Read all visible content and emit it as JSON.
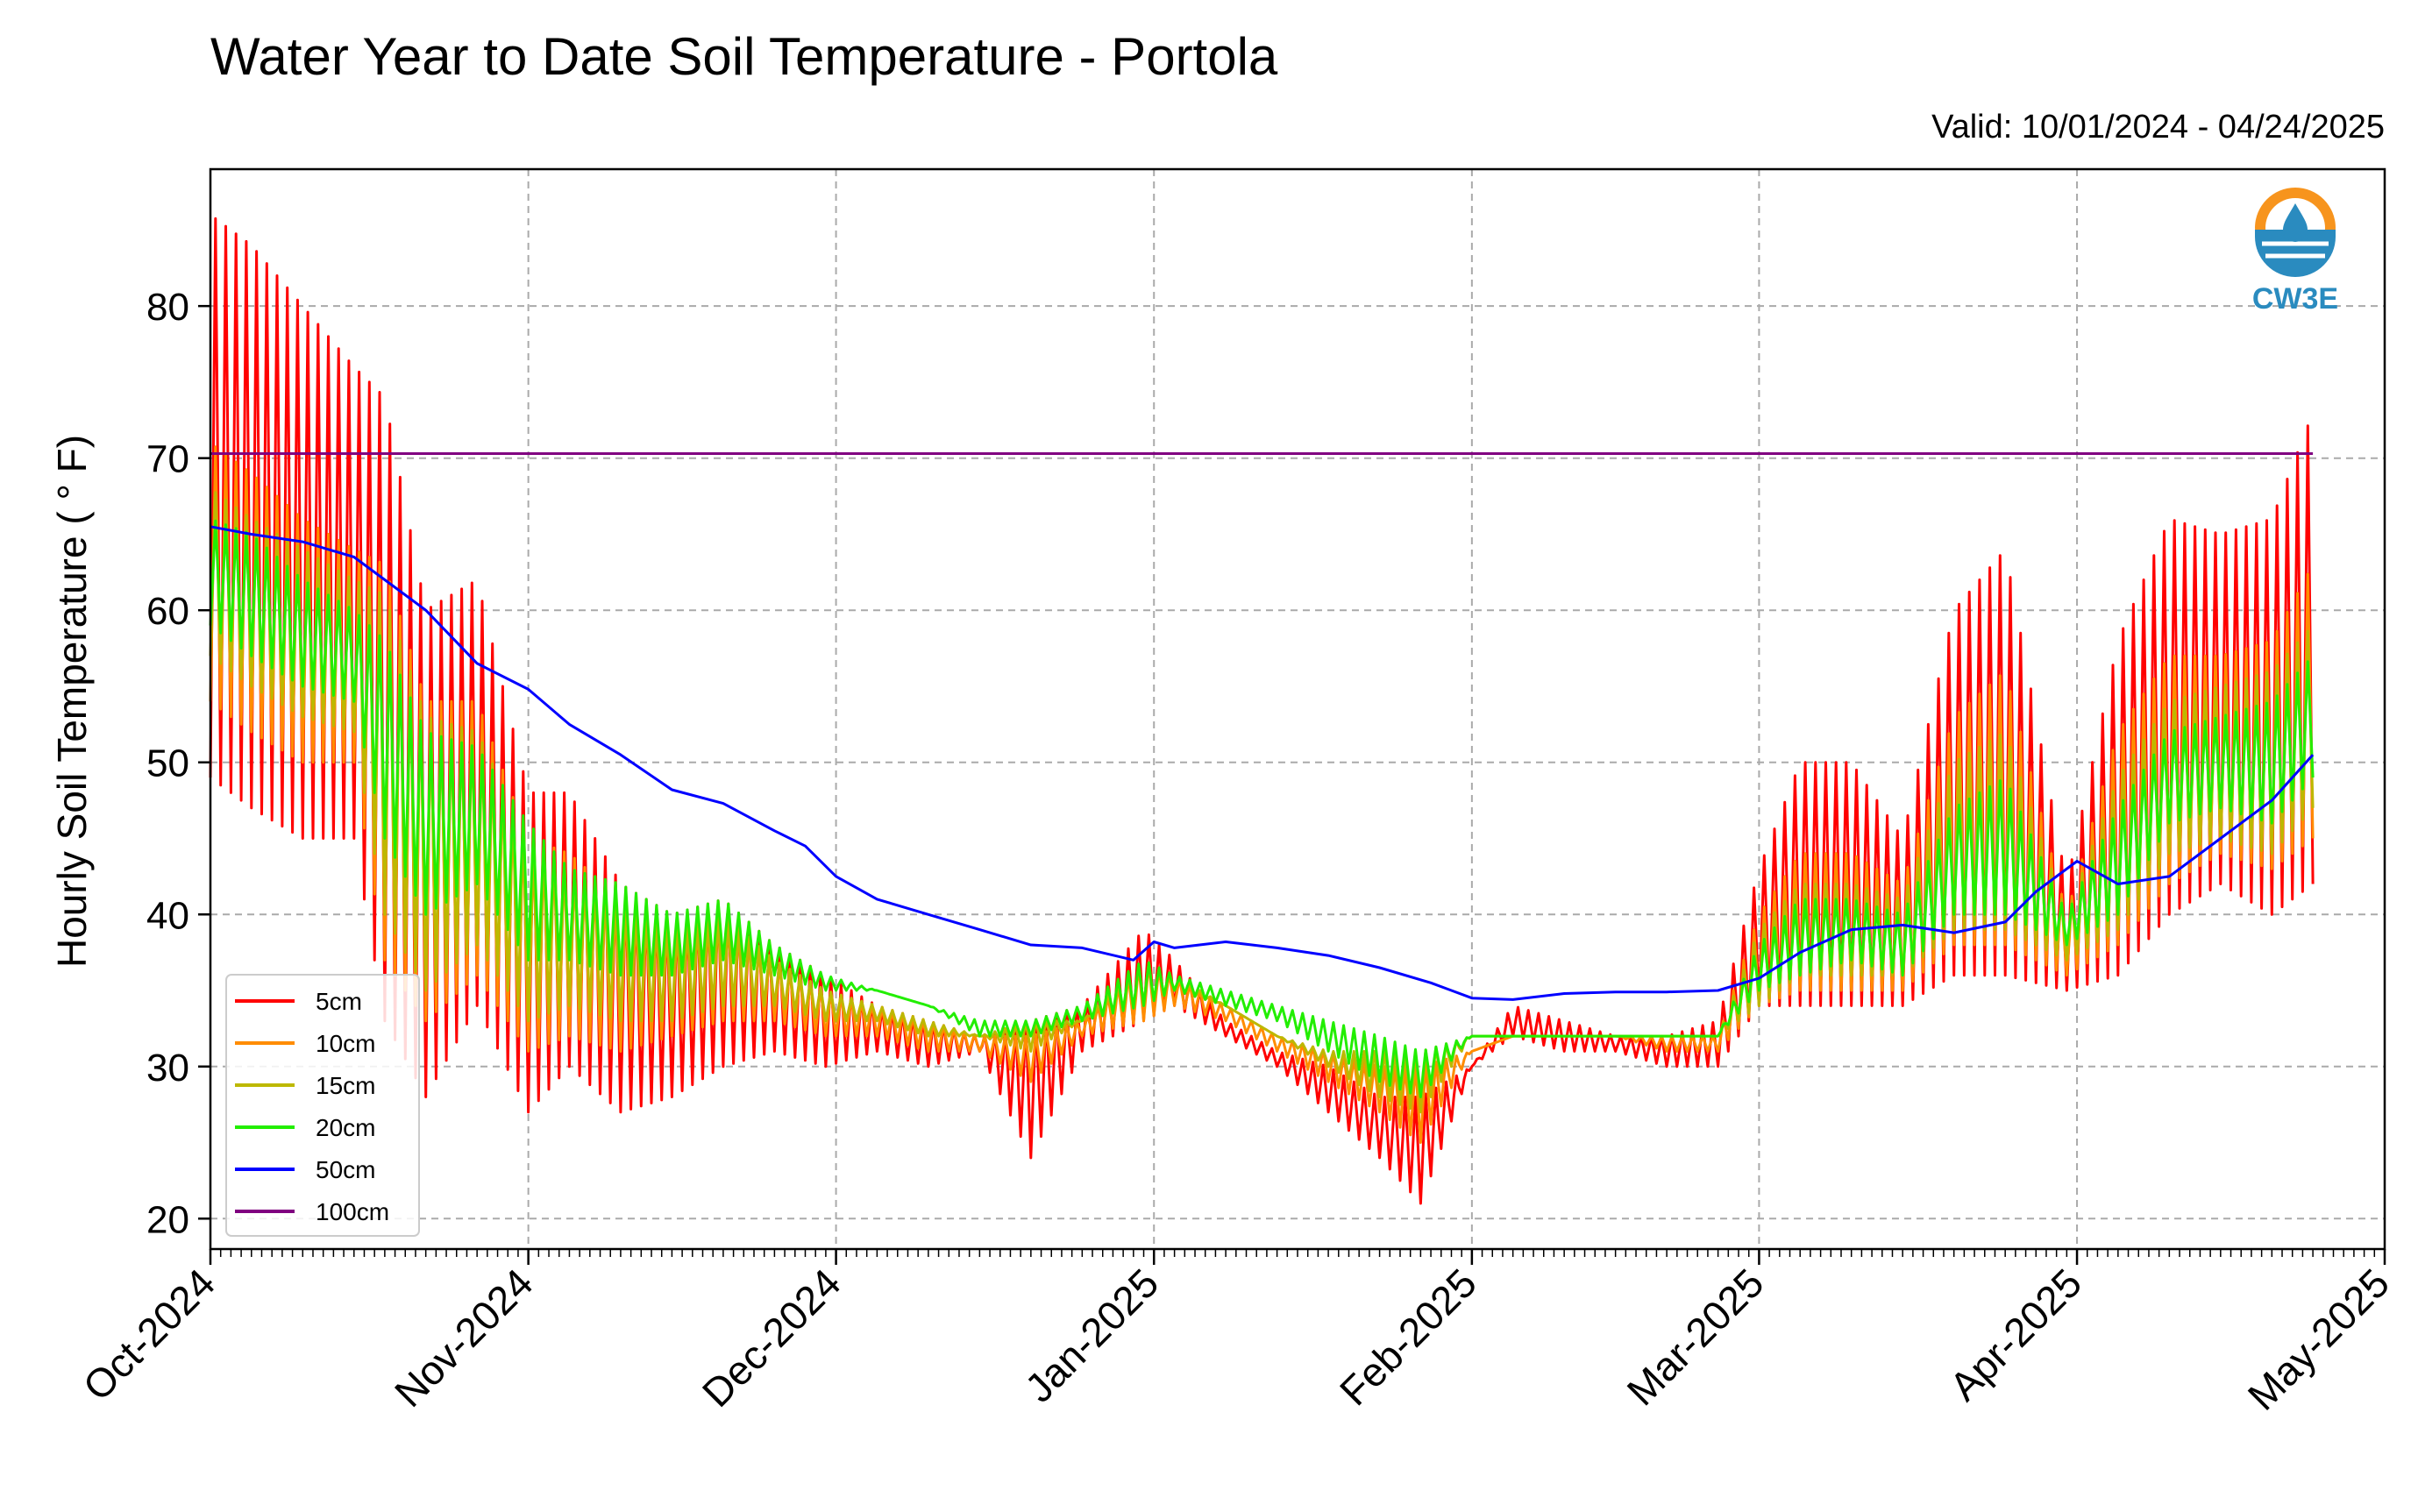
{
  "title": "Water Year to Date Soil Temperature - Portola",
  "valid_label": "Valid: 10/01/2024 - 04/24/2025",
  "logo": {
    "icon": "cw3e-water-drop-logo",
    "text": "CW3E",
    "colors": [
      "#f7941d",
      "#2a8bbf",
      "#1e6f9f"
    ]
  },
  "chart_data": {
    "type": "line",
    "title": "Water Year to Date Soil Temperature - Portola",
    "xlabel": "",
    "ylabel": "Hourly Soil Temperature ( ° F)",
    "x_range": [
      "2024-10-01",
      "2025-05-01"
    ],
    "ylim": [
      18,
      89
    ],
    "yticks": [
      20,
      30,
      40,
      50,
      60,
      70,
      80
    ],
    "xticks": [
      {
        "date": "2024-10-01",
        "label": "Oct-2024"
      },
      {
        "date": "2024-11-01",
        "label": "Nov-2024"
      },
      {
        "date": "2024-12-01",
        "label": "Dec-2024"
      },
      {
        "date": "2025-01-01",
        "label": "Jan-2025"
      },
      {
        "date": "2025-02-01",
        "label": "Feb-2025"
      },
      {
        "date": "2025-03-01",
        "label": "Mar-2025"
      },
      {
        "date": "2025-04-01",
        "label": "Apr-2025"
      },
      {
        "date": "2025-05-01",
        "label": "May-2025"
      }
    ],
    "grid": true,
    "legend_position": "lower-left",
    "series": [
      {
        "name": "5cm",
        "color": "#ff0000",
        "dates": [
          "2024-10-01",
          "2024-10-05",
          "2024-10-10",
          "2024-10-15",
          "2024-10-18",
          "2024-10-22",
          "2024-10-27",
          "2024-11-01",
          "2024-11-05",
          "2024-11-10",
          "2024-11-15",
          "2024-11-20",
          "2024-11-25",
          "2024-11-30",
          "2024-12-05",
          "2024-12-10",
          "2024-12-15",
          "2024-12-20",
          "2024-12-25",
          "2024-12-31",
          "2025-01-03",
          "2025-01-08",
          "2025-01-13",
          "2025-01-18",
          "2025-01-23",
          "2025-01-27",
          "2025-02-01",
          "2025-02-05",
          "2025-02-10",
          "2025-02-15",
          "2025-02-20",
          "2025-02-25",
          "2025-03-01",
          "2025-03-05",
          "2025-03-10",
          "2025-03-15",
          "2025-03-20",
          "2025-03-25",
          "2025-03-31",
          "2025-04-05",
          "2025-04-10",
          "2025-04-15",
          "2025-04-20",
          "2025-04-24"
        ],
        "max": [
          86,
          84,
          80,
          76,
          74,
          60,
          62,
          48,
          48,
          42,
          40,
          41,
          38,
          36,
          34,
          33,
          32,
          33,
          34,
          39,
          37,
          33,
          31,
          30,
          28,
          28,
          30,
          34,
          33,
          32,
          32,
          33,
          43,
          50,
          50,
          45,
          60,
          64,
          42,
          58,
          66,
          65,
          66,
          73
        ],
        "min": [
          49,
          47,
          45,
          45,
          33,
          28,
          34,
          27,
          30,
          27,
          28,
          30,
          31,
          30,
          31,
          30,
          31,
          24,
          31,
          33,
          34,
          32,
          30,
          27,
          24,
          21,
          30,
          32,
          31,
          31,
          30,
          30,
          34,
          34,
          34,
          34,
          36,
          36,
          35,
          36,
          40,
          42,
          40,
          42
        ]
      },
      {
        "name": "10cm",
        "color": "#ff8c00",
        "dates": [
          "2024-10-01",
          "2024-10-05",
          "2024-10-10",
          "2024-10-15",
          "2024-10-18",
          "2024-10-22",
          "2024-10-27",
          "2024-11-01",
          "2024-11-05",
          "2024-11-10",
          "2024-11-15",
          "2024-11-20",
          "2024-11-25",
          "2024-11-30",
          "2024-12-05",
          "2024-12-10",
          "2024-12-15",
          "2024-12-20",
          "2024-12-25",
          "2024-12-31",
          "2025-01-03",
          "2025-01-08",
          "2025-01-13",
          "2025-01-18",
          "2025-01-23",
          "2025-01-27",
          "2025-02-01",
          "2025-02-05",
          "2025-02-10",
          "2025-02-15",
          "2025-02-20",
          "2025-02-25",
          "2025-03-01",
          "2025-03-05",
          "2025-03-10",
          "2025-03-15",
          "2025-03-20",
          "2025-03-25",
          "2025-03-31",
          "2025-04-05",
          "2025-04-10",
          "2025-04-15",
          "2025-04-20",
          "2025-04-24"
        ],
        "max": [
          71,
          69,
          66,
          64,
          63,
          54,
          54,
          45,
          44,
          41,
          39,
          40,
          37,
          35,
          34,
          33,
          32,
          32,
          33,
          37,
          36,
          34,
          32,
          31,
          30,
          30,
          31,
          32,
          32,
          32,
          32,
          32,
          40,
          44,
          44,
          42,
          53,
          56,
          40,
          52,
          57,
          57,
          58,
          63
        ],
        "min": [
          54,
          52,
          50,
          50,
          37,
          33,
          36,
          31,
          32,
          31,
          32,
          33,
          33,
          32,
          32,
          31,
          31,
          29,
          32,
          33,
          34,
          33,
          31,
          29,
          27,
          25,
          31,
          32,
          32,
          32,
          31,
          31,
          34,
          35,
          35,
          35,
          38,
          38,
          36,
          38,
          42,
          44,
          43,
          45
        ]
      },
      {
        "name": "15cm",
        "color": "#bdb800",
        "dates": [
          "2024-10-01",
          "2024-10-05",
          "2024-10-10",
          "2024-10-15",
          "2024-10-18",
          "2024-10-22",
          "2024-10-27",
          "2024-11-01",
          "2024-11-05",
          "2024-11-10",
          "2024-11-15",
          "2024-11-20",
          "2024-11-25",
          "2024-11-30",
          "2024-12-05",
          "2024-12-10",
          "2024-12-15",
          "2024-12-20",
          "2024-12-25",
          "2024-12-31",
          "2025-01-03",
          "2025-01-08",
          "2025-01-13",
          "2025-01-18",
          "2025-01-23",
          "2025-01-27",
          "2025-02-01",
          "2025-02-05",
          "2025-02-10",
          "2025-02-15",
          "2025-02-20",
          "2025-02-25",
          "2025-03-01",
          "2025-03-05",
          "2025-03-10",
          "2025-03-15",
          "2025-03-20",
          "2025-03-25",
          "2025-03-31",
          "2025-04-05",
          "2025-04-10",
          "2025-04-15",
          "2025-04-20",
          "2025-04-24"
        ],
        "max": [
          68,
          66,
          64,
          62,
          61,
          53,
          52,
          45,
          43,
          41,
          39,
          40,
          37,
          35,
          34,
          33,
          32,
          33,
          33,
          37,
          36,
          34,
          32,
          31,
          31,
          31,
          32,
          32,
          32,
          32,
          32,
          32,
          39,
          42,
          42,
          41,
          50,
          52,
          40,
          49,
          54,
          55,
          56,
          59
        ],
        "min": [
          57,
          55,
          53,
          52,
          40,
          35,
          38,
          33,
          34,
          33,
          33,
          34,
          34,
          33,
          33,
          32,
          32,
          31,
          33,
          34,
          35,
          34,
          32,
          30,
          28,
          27,
          32,
          32,
          32,
          32,
          32,
          32,
          34,
          36,
          36,
          36,
          39,
          39,
          37,
          39,
          44,
          45,
          44,
          47
        ]
      },
      {
        "name": "20cm",
        "color": "#22ee00",
        "dates": [
          "2024-10-01",
          "2024-10-05",
          "2024-10-10",
          "2024-10-15",
          "2024-10-18",
          "2024-10-22",
          "2024-10-27",
          "2024-11-01",
          "2024-11-05",
          "2024-11-10",
          "2024-11-15",
          "2024-11-20",
          "2024-11-25",
          "2024-11-30",
          "2024-12-05",
          "2024-12-10",
          "2024-12-15",
          "2024-12-20",
          "2024-12-25",
          "2024-12-31",
          "2025-01-03",
          "2025-01-08",
          "2025-01-13",
          "2025-01-18",
          "2025-01-23",
          "2025-01-27",
          "2025-02-01",
          "2025-02-05",
          "2025-02-10",
          "2025-02-15",
          "2025-02-20",
          "2025-02-25",
          "2025-03-01",
          "2025-03-05",
          "2025-03-10",
          "2025-03-15",
          "2025-03-20",
          "2025-03-25",
          "2025-03-31",
          "2025-04-05",
          "2025-04-10",
          "2025-04-15",
          "2025-04-20",
          "2025-04-24"
        ],
        "max": [
          66,
          65,
          62,
          60,
          58,
          52,
          51,
          46,
          43,
          42,
          40,
          41,
          38,
          36,
          35,
          34,
          33,
          33,
          34,
          37,
          36,
          35,
          34,
          33,
          32,
          31,
          32,
          32,
          32,
          32,
          32,
          32,
          38,
          41,
          41,
          40,
          47,
          49,
          40,
          47,
          52,
          53,
          54,
          57
        ],
        "min": [
          59,
          57,
          55,
          54,
          45,
          40,
          42,
          37,
          37,
          36,
          36,
          37,
          36,
          35,
          35,
          34,
          32,
          32,
          33,
          34,
          35,
          34,
          33,
          31,
          29,
          28,
          32,
          32,
          32,
          32,
          32,
          32,
          35,
          36,
          37,
          36,
          40,
          40,
          38,
          40,
          46,
          47,
          46,
          49
        ]
      },
      {
        "name": "50cm",
        "color": "#0000ff",
        "dates": [
          "2024-10-01",
          "2024-10-05",
          "2024-10-10",
          "2024-10-15",
          "2024-10-18",
          "2024-10-22",
          "2024-10-27",
          "2024-11-01",
          "2024-11-05",
          "2024-11-10",
          "2024-11-15",
          "2024-11-20",
          "2024-11-25",
          "2024-11-28",
          "2024-12-01",
          "2024-12-05",
          "2024-12-10",
          "2024-12-15",
          "2024-12-20",
          "2024-12-25",
          "2024-12-30",
          "2025-01-01",
          "2025-01-03",
          "2025-01-08",
          "2025-01-13",
          "2025-01-18",
          "2025-01-23",
          "2025-01-28",
          "2025-02-01",
          "2025-02-05",
          "2025-02-10",
          "2025-02-15",
          "2025-02-20",
          "2025-02-25",
          "2025-03-01",
          "2025-03-05",
          "2025-03-10",
          "2025-03-15",
          "2025-03-20",
          "2025-03-25",
          "2025-03-28",
          "2025-04-01",
          "2025-04-05",
          "2025-04-10",
          "2025-04-15",
          "2025-04-20",
          "2025-04-24"
        ],
        "values": [
          65.5,
          65,
          64.5,
          63.5,
          62,
          60,
          56.5,
          54.8,
          52.5,
          50.5,
          48.2,
          47.3,
          45.5,
          44.5,
          42.5,
          41,
          40,
          39,
          38,
          37.8,
          37,
          38.2,
          37.8,
          38.2,
          37.8,
          37.3,
          36.5,
          35.5,
          34.5,
          34.4,
          34.8,
          34.9,
          34.9,
          35,
          35.8,
          37.5,
          39,
          39.3,
          38.8,
          39.5,
          41.5,
          43.5,
          42,
          42.5,
          45,
          47.5,
          50.5
        ]
      },
      {
        "name": "100cm",
        "color": "#800080",
        "dates": [
          "2024-10-01",
          "2025-04-24"
        ],
        "values": [
          70.3,
          70.3
        ]
      }
    ]
  }
}
